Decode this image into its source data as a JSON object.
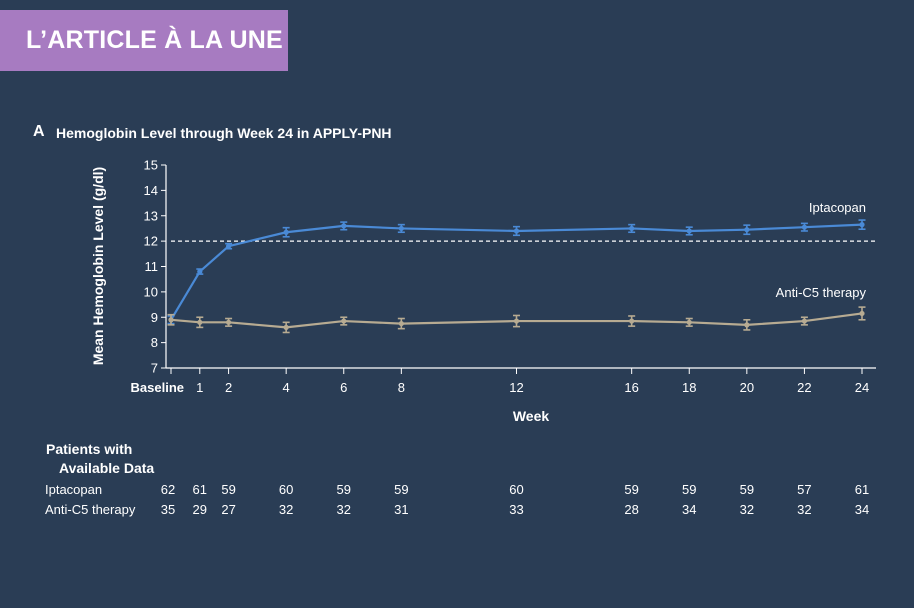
{
  "banner": {
    "label": "L’ARTICLE À LA UNE",
    "color": "#a77bc1"
  },
  "panel": {
    "letter": "A",
    "title": "Hemoglobin Level through Week 24 in APPLY-PNH"
  },
  "chart_data": {
    "type": "line",
    "xlabel": "Week",
    "ylabel": "Mean Hemoglobin Level (g/dl)",
    "xlim": [
      0,
      24
    ],
    "ylim": [
      7,
      15
    ],
    "x_ticks": [
      {
        "x": 0,
        "label": "Baseline"
      },
      {
        "x": 1,
        "label": "1"
      },
      {
        "x": 2,
        "label": "2"
      },
      {
        "x": 4,
        "label": "4"
      },
      {
        "x": 6,
        "label": "6"
      },
      {
        "x": 8,
        "label": "8"
      },
      {
        "x": 12,
        "label": "12"
      },
      {
        "x": 16,
        "label": "16"
      },
      {
        "x": 18,
        "label": "18"
      },
      {
        "x": 20,
        "label": "20"
      },
      {
        "x": 22,
        "label": "22"
      },
      {
        "x": 24,
        "label": "24"
      }
    ],
    "y_ticks": [
      7,
      8,
      9,
      10,
      11,
      12,
      13,
      14,
      15
    ],
    "reference_line": {
      "y": 12,
      "style": "dashed"
    },
    "grid": false,
    "series": [
      {
        "name": "Iptacopan",
        "color": "#4a8ad6",
        "x": [
          0,
          1,
          2,
          4,
          6,
          8,
          12,
          16,
          18,
          20,
          22,
          24
        ],
        "values": [
          8.9,
          10.8,
          11.8,
          12.35,
          12.6,
          12.5,
          12.4,
          12.5,
          12.4,
          12.45,
          12.55,
          12.65
        ],
        "error": [
          0.15,
          0.1,
          0.1,
          0.18,
          0.15,
          0.15,
          0.17,
          0.15,
          0.15,
          0.18,
          0.15,
          0.18
        ]
      },
      {
        "name": "Anti-C5 therapy",
        "color": "#b7ab92",
        "x": [
          0,
          1,
          2,
          4,
          6,
          8,
          12,
          16,
          18,
          20,
          22,
          24
        ],
        "values": [
          8.9,
          8.8,
          8.8,
          8.6,
          8.85,
          8.75,
          8.85,
          8.85,
          8.8,
          8.7,
          8.85,
          9.15
        ],
        "error": [
          0.2,
          0.2,
          0.15,
          0.2,
          0.15,
          0.2,
          0.22,
          0.2,
          0.15,
          0.2,
          0.15,
          0.25
        ]
      }
    ]
  },
  "availability": {
    "title_line1": "Patients with",
    "title_line2": "Available Data",
    "rows": [
      {
        "label": "Iptacopan",
        "counts": [
          "62",
          "61",
          "59",
          "60",
          "59",
          "59",
          "60",
          "59",
          "59",
          "59",
          "57",
          "61"
        ]
      },
      {
        "label": "Anti-C5 therapy",
        "counts": [
          "35",
          "29",
          "27",
          "32",
          "32",
          "31",
          "33",
          "28",
          "34",
          "32",
          "32",
          "34"
        ]
      }
    ]
  }
}
